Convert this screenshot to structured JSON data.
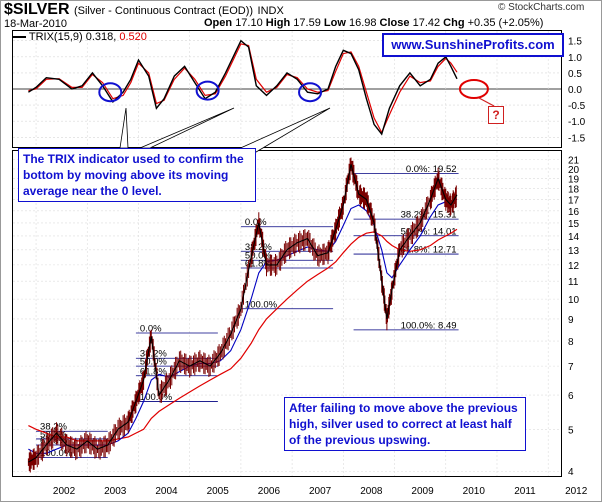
{
  "header": {
    "symbol": "$SILVER",
    "description": "(Silver - Continuous Contract (EOD))",
    "exchange": "INDX",
    "date": "18-Mar-2010",
    "open_label": "Open",
    "open": "17.10",
    "high_label": "High",
    "high": "17.59",
    "low_label": "Low",
    "low": "16.98",
    "close_label": "Close",
    "close": "17.42",
    "chg_label": "Chg",
    "chg": "+0.35 (+2.05%)",
    "brand": "© StockCharts.com"
  },
  "watermark": "www.SunshineProfits.com",
  "annotations": {
    "trix_note": "The TRIX indicator used to confirm the bottom by moving above its moving average near the 0 level.",
    "price_note": "After failing to move above the previous high, silver used to correct at least half of the previous upswing.",
    "question_mark": "?"
  },
  "colors": {
    "price": "#000000",
    "red_line": "#e00000",
    "blue_line": "#0000c0",
    "annotation": "#1010d0"
  },
  "chart_data": [
    {
      "type": "line",
      "name": "TRIX panel",
      "legend": {
        "label": "TRIX(15,9)",
        "value": "0.318",
        "signal_value": "0.520"
      },
      "x": [
        2001.85,
        2002.0,
        2002.2,
        2002.45,
        2002.7,
        2002.9,
        2003.1,
        2003.3,
        2003.5,
        2003.7,
        2003.85,
        2004.0,
        2004.2,
        2004.35,
        2004.5,
        2004.7,
        2004.9,
        2005.1,
        2005.3,
        2005.5,
        2005.7,
        2005.85,
        2006.0,
        2006.15,
        2006.3,
        2006.5,
        2006.7,
        2006.9,
        2007.1,
        2007.3,
        2007.5,
        2007.7,
        2007.85,
        2008.0,
        2008.15,
        2008.3,
        2008.45,
        2008.6,
        2008.75,
        2008.9,
        2009.1,
        2009.3,
        2009.5,
        2009.7,
        2009.85,
        2010.0,
        2010.1,
        2010.22
      ],
      "series": [
        {
          "name": "TRIX",
          "values": [
            -0.1,
            0.05,
            0.35,
            0.3,
            0.0,
            0.1,
            0.5,
            0.1,
            -0.4,
            -0.1,
            0.3,
            0.9,
            0.4,
            -0.6,
            -0.3,
            0.4,
            0.7,
            0.2,
            -0.3,
            -0.1,
            0.5,
            1.0,
            1.5,
            1.3,
            0.1,
            -0.2,
            0.1,
            0.5,
            0.3,
            -0.1,
            -0.15,
            0.0,
            0.7,
            1.2,
            1.1,
            0.6,
            -0.3,
            -1.1,
            -1.4,
            -0.6,
            0.1,
            0.5,
            0.1,
            0.3,
            0.8,
            1.0,
            0.7,
            0.318
          ]
        },
        {
          "name": "Signal",
          "values": [
            -0.05,
            0.0,
            0.3,
            0.32,
            0.05,
            0.05,
            0.45,
            0.2,
            -0.3,
            -0.2,
            0.2,
            0.8,
            0.5,
            -0.45,
            -0.35,
            0.3,
            0.65,
            0.3,
            -0.2,
            -0.15,
            0.4,
            0.9,
            1.4,
            1.35,
            0.3,
            -0.1,
            0.05,
            0.45,
            0.35,
            0.0,
            -0.1,
            -0.05,
            0.55,
            1.1,
            1.15,
            0.7,
            -0.1,
            -0.9,
            -1.35,
            -0.8,
            -0.1,
            0.4,
            0.2,
            0.25,
            0.7,
            0.95,
            0.8,
            0.52
          ]
        }
      ],
      "ylim": [
        -1.8,
        1.8
      ],
      "yticks": [
        "1.5",
        "1.0",
        "0.5",
        "0.0",
        "-0.5",
        "-1.0",
        "-1.5"
      ],
      "ytick_values": [
        1.5,
        1.0,
        0.5,
        0.0,
        -0.5,
        -1.0,
        -1.5
      ]
    },
    {
      "type": "line",
      "name": "Price panel",
      "scale": "log",
      "x": [
        2001.85,
        2002.0,
        2002.2,
        2002.4,
        2002.6,
        2002.8,
        2003.0,
        2003.2,
        2003.4,
        2003.6,
        2003.8,
        2003.95,
        2004.1,
        2004.25,
        2004.4,
        2004.6,
        2004.8,
        2005.0,
        2005.2,
        2005.4,
        2005.6,
        2005.8,
        2006.0,
        2006.2,
        2006.35,
        2006.5,
        2006.7,
        2006.9,
        2007.1,
        2007.3,
        2007.5,
        2007.7,
        2007.85,
        2008.0,
        2008.15,
        2008.3,
        2008.45,
        2008.6,
        2008.75,
        2008.85,
        2008.95,
        2009.1,
        2009.3,
        2009.5,
        2009.7,
        2009.85,
        2010.0,
        2010.1,
        2010.22
      ],
      "series": [
        {
          "name": "Price",
          "values": [
            4.2,
            4.3,
            4.6,
            4.9,
            4.6,
            4.5,
            4.7,
            4.5,
            4.6,
            5.0,
            5.2,
            5.8,
            6.5,
            8.2,
            6.0,
            6.5,
            7.2,
            7.0,
            7.2,
            7.0,
            7.5,
            8.3,
            9.5,
            12.5,
            15.0,
            12.0,
            12.0,
            13.0,
            13.5,
            13.8,
            12.6,
            12.8,
            14.5,
            16.5,
            20.5,
            17.5,
            17.0,
            15.0,
            11.0,
            9.0,
            10.5,
            13.0,
            14.0,
            15.0,
            17.0,
            19.0,
            17.0,
            16.5,
            17.42
          ]
        },
        {
          "name": "MA fast",
          "values": [
            4.5,
            4.4,
            4.4,
            4.5,
            4.6,
            4.6,
            4.6,
            4.6,
            4.6,
            4.7,
            4.9,
            5.3,
            5.8,
            6.5,
            6.7,
            6.6,
            6.8,
            7.0,
            7.1,
            7.1,
            7.2,
            7.6,
            8.5,
            10.0,
            11.5,
            12.2,
            12.3,
            12.6,
            12.9,
            13.2,
            13.0,
            12.9,
            13.6,
            14.8,
            16.2,
            16.5,
            16.0,
            14.8,
            13.0,
            11.5,
            11.2,
            12.0,
            13.0,
            14.0,
            15.5,
            16.5,
            16.8,
            16.8,
            17.0
          ]
        },
        {
          "name": "MA slow",
          "values": [
            5.1,
            5.0,
            4.9,
            4.8,
            4.8,
            4.7,
            4.7,
            4.7,
            4.7,
            4.75,
            4.8,
            4.9,
            5.0,
            5.3,
            5.5,
            5.7,
            5.9,
            6.1,
            6.3,
            6.5,
            6.7,
            6.9,
            7.3,
            7.9,
            8.5,
            9.0,
            9.5,
            10.0,
            10.5,
            11.0,
            11.4,
            11.8,
            12.2,
            12.8,
            13.4,
            13.9,
            14.2,
            14.3,
            14.0,
            13.6,
            13.3,
            13.0,
            12.9,
            13.0,
            13.3,
            13.7,
            14.0,
            14.2,
            14.5
          ]
        }
      ],
      "ylim": [
        3.9,
        22
      ],
      "yticks": [
        "21",
        "20",
        "19",
        "18",
        "17",
        "16",
        "15",
        "14",
        "13",
        "12",
        "11",
        "10",
        "9",
        "8",
        "7",
        "6",
        "5",
        "4"
      ],
      "ytick_values": [
        21,
        20,
        19,
        18,
        17,
        16,
        15,
        14,
        13,
        12,
        11,
        10,
        9,
        8,
        7,
        6,
        5,
        4
      ],
      "xticks": [
        "2002",
        "2003",
        "2004",
        "2005",
        "2006",
        "2007",
        "2008",
        "2009",
        "2010",
        "2011",
        "2012"
      ],
      "xtick_values": [
        2002,
        2003,
        2004,
        2005,
        2006,
        2007,
        2008,
        2009,
        2010,
        2011,
        2012
      ],
      "xlim": [
        2001.55,
        2012.25
      ]
    }
  ],
  "fib_sets": [
    {
      "x0": 2002.0,
      "x1": 2003.4,
      "levels": [
        {
          "label": "38.2%",
          "y": 4.95,
          "side": "right"
        },
        {
          "label": "50.0%",
          "y": 4.75,
          "side": "right"
        },
        {
          "label": "61.8%",
          "y": 4.6,
          "side": "right"
        },
        {
          "label": "100.0%",
          "y": 4.3,
          "side": "right"
        }
      ]
    },
    {
      "x0": 2003.95,
      "x1": 2005.55,
      "levels": [
        {
          "label": "0.0%",
          "y": 8.35,
          "side": "left"
        },
        {
          "label": "38.2%",
          "y": 7.3,
          "side": "right"
        },
        {
          "label": "50.0%",
          "y": 7.0,
          "side": "right"
        },
        {
          "label": "61.8%",
          "y": 6.65,
          "side": "right"
        },
        {
          "label": "100.0%",
          "y": 5.8,
          "side": "left"
        }
      ]
    },
    {
      "x0": 2006.0,
      "x1": 2007.8,
      "levels": [
        {
          "label": "0.0%",
          "y": 14.7,
          "side": "right"
        },
        {
          "label": "38.2%",
          "y": 12.9,
          "side": "right"
        },
        {
          "label": "50.0%",
          "y": 12.3,
          "side": "right"
        },
        {
          "label": "61.8%",
          "y": 11.8,
          "side": "right"
        },
        {
          "label": "100.0%",
          "y": 9.5,
          "side": "left"
        }
      ]
    },
    {
      "x0": 2008.2,
      "x1": 2010.25,
      "levels": [
        {
          "label": "0.0%: 19.52",
          "y": 19.52,
          "side": "right"
        },
        {
          "label": "38.2%: 15.31",
          "y": 15.31,
          "side": "right"
        },
        {
          "label": "50.0%: 14.01",
          "y": 14.01,
          "side": "right"
        },
        {
          "label": "61.8%: 12.71",
          "y": 12.71,
          "side": "right"
        },
        {
          "label": "100.0%: 8.49",
          "y": 8.49,
          "side": "right"
        }
      ]
    }
  ],
  "trix_circles": [
    {
      "x": 2003.45,
      "y": -0.1
    },
    {
      "x": 2005.35,
      "y": -0.05
    },
    {
      "x": 2007.35,
      "y": -0.1
    }
  ],
  "trix_question_circle": {
    "x": 2010.55,
    "y": 0.0
  }
}
